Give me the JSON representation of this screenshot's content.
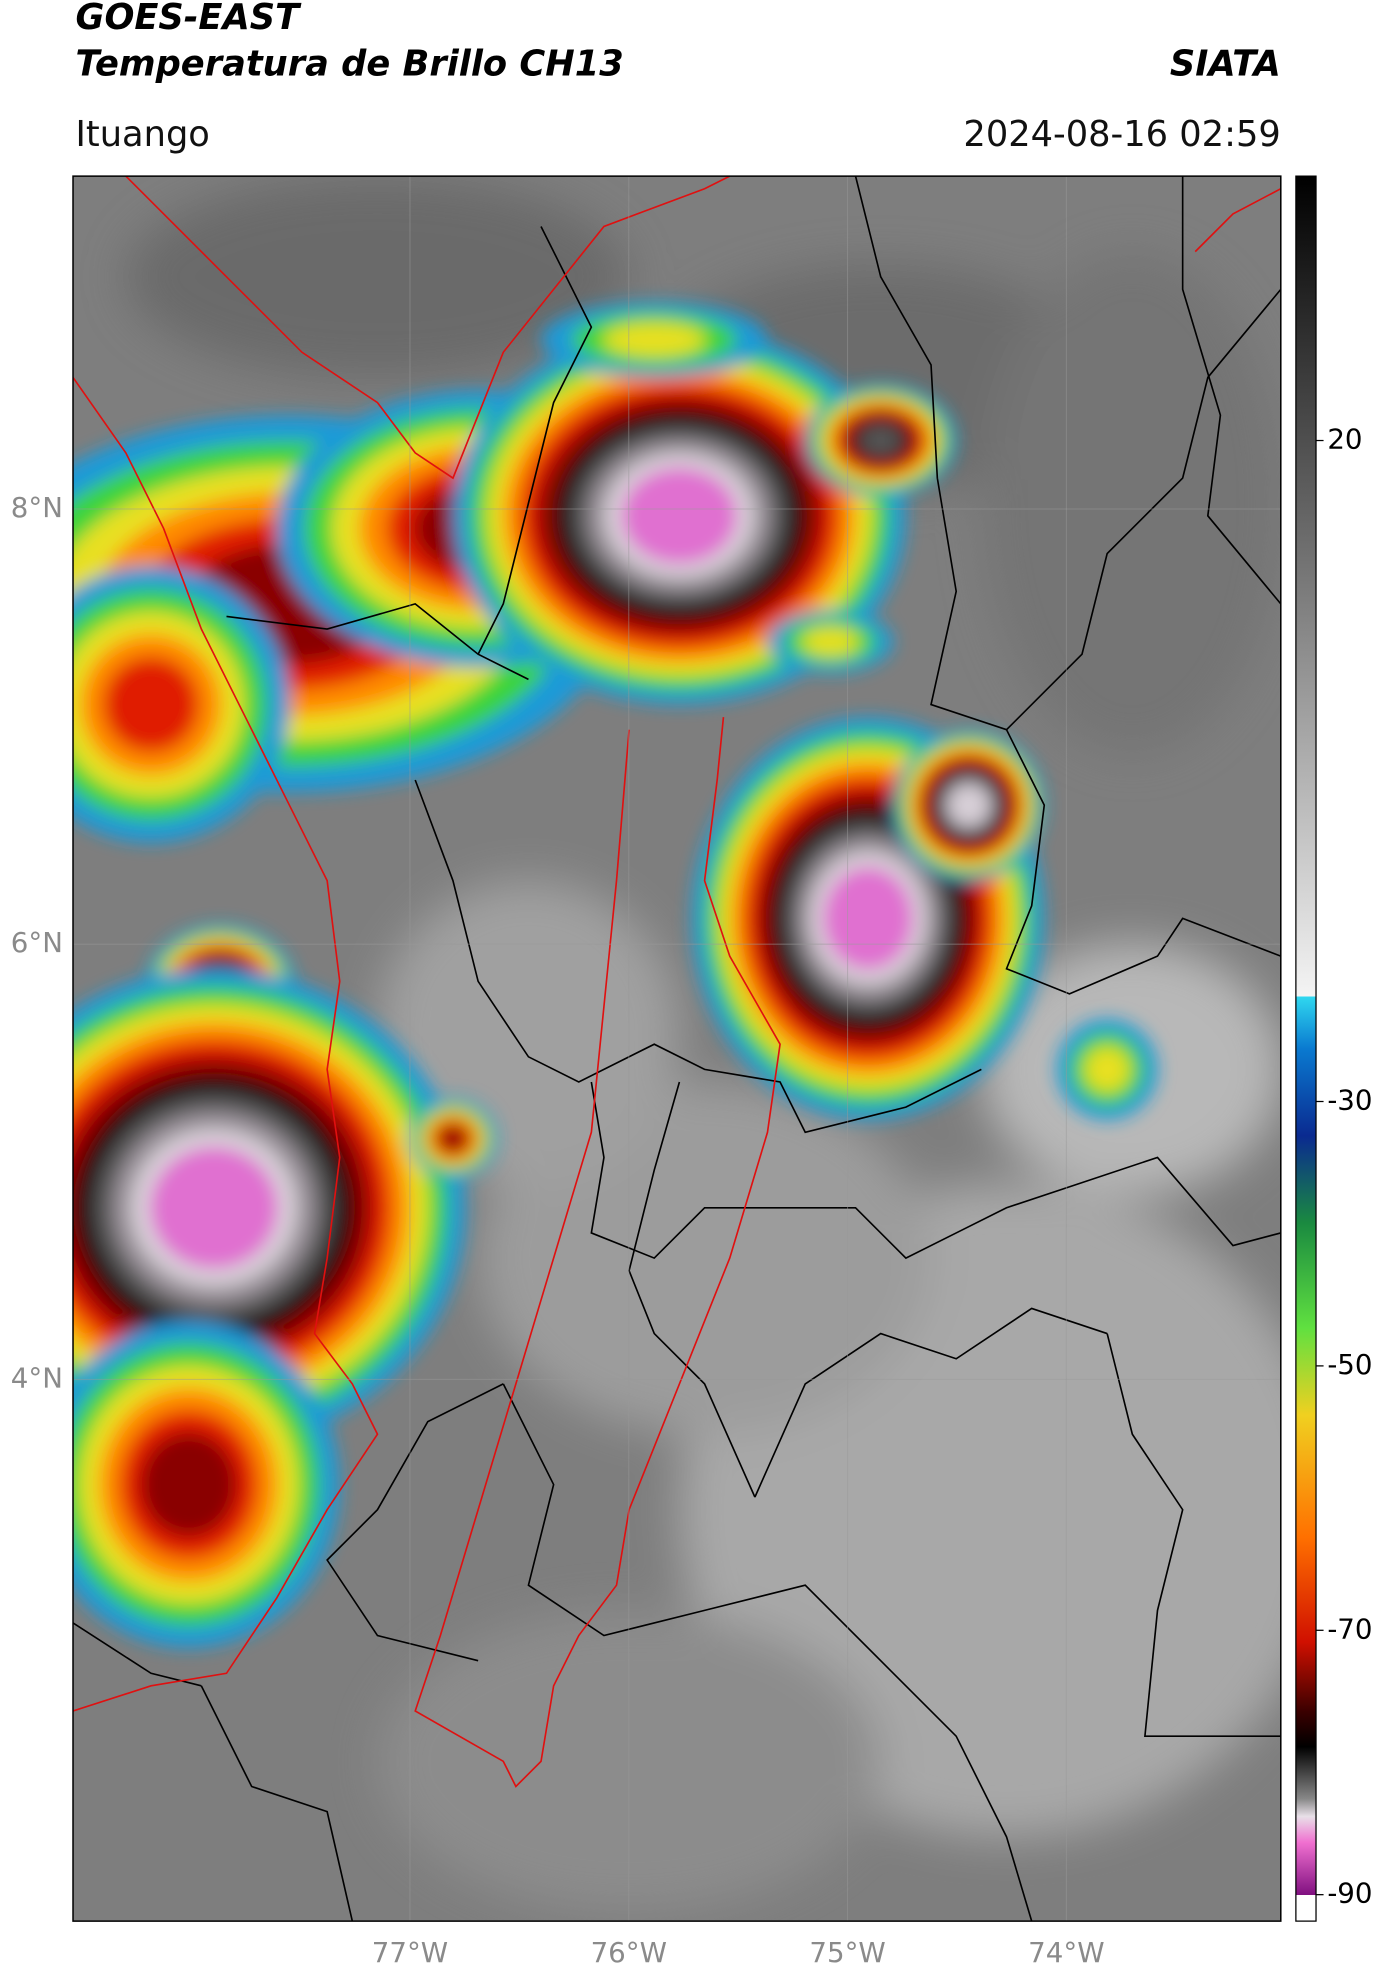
{
  "header": {
    "title": "GOES-EAST",
    "subtitle": "Temperatura de Brillo CH13",
    "brand": "SIATA",
    "location": "Ituango",
    "timestamp": "2024-08-16 02:59"
  },
  "map": {
    "xlim": [
      -78.54,
      -73.02
    ],
    "ylim": [
      1.51,
      9.53
    ],
    "xticks": [
      {
        "value": -77,
        "label": "77°W"
      },
      {
        "value": -76,
        "label": "76°W"
      },
      {
        "value": -75,
        "label": "75°W"
      },
      {
        "value": -74,
        "label": "74°W"
      }
    ],
    "yticks": [
      {
        "value": 8,
        "label": "8°N"
      },
      {
        "value": 6,
        "label": "6°N"
      },
      {
        "value": 4,
        "label": "4°N"
      }
    ],
    "grid": true
  },
  "colorbar": {
    "clim": [
      -92,
      40
    ],
    "ticks": [
      20,
      -30,
      -50,
      -70,
      -90
    ]
  }
}
